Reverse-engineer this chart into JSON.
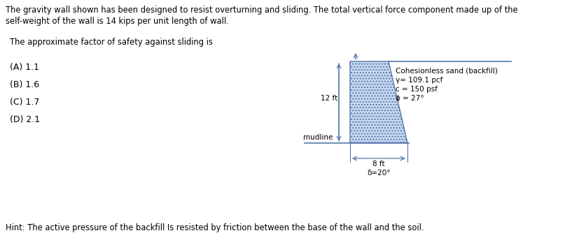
{
  "title_line1": "The gravity wall shown has been designed to resist overturning and sliding. The total vertical force component made up of the",
  "title_line2": "self-weight of the wall is 14 kips per unit length of wall.",
  "question": "The approximate factor of safety against sliding is",
  "choices": [
    "(A) 1.1",
    "(B) 1.6",
    "(C) 1.7",
    "(D) 2.1"
  ],
  "hint": "Hint: The active pressure of the backfill Is resisted by friction between the base of the wall and the soil.",
  "backfill_label": "Cohesionless sand (backfill)",
  "backfill_props": [
    "γ= 109.1 pcf",
    "c = 150 psf",
    "ϕ = 27°"
  ],
  "dim_height": "12 ft",
  "dim_base": "8 ft",
  "delta_label": "δ=20°",
  "mudline_label": "mudline",
  "bg_color": "#ffffff",
  "text_color": "#000000",
  "wall_fill": "#c8d8f0",
  "wall_edge": "#5577aa"
}
